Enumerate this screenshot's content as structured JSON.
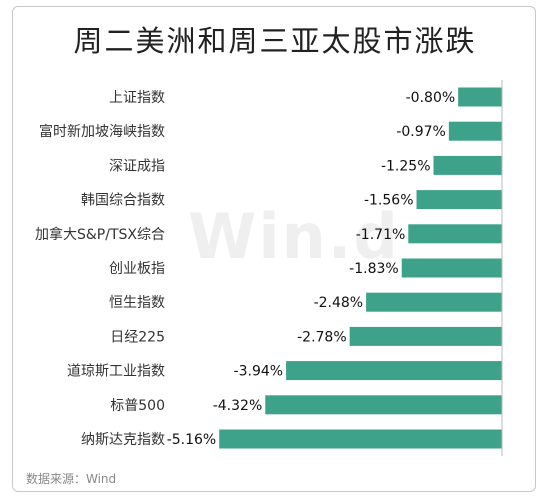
{
  "title": "周二美洲和周三亚太股市涨跌",
  "source": "数据来源：Wind",
  "watermark": "Win.d",
  "colors": {
    "bar": "#3ea18a",
    "text": "#222222",
    "axis": "#bbbbbb"
  },
  "chart_data": {
    "type": "bar",
    "orientation": "horizontal",
    "categories": [
      "上证指数",
      "富时新加坡海峡指数",
      "深证成指",
      "韩国综合指数",
      "加拿大S&P/TSX综合",
      "创业板指",
      "恒生指数",
      "日经225",
      "道琼斯工业指数",
      "标普500",
      "纳斯达克指数"
    ],
    "values": [
      -0.8,
      -0.97,
      -1.25,
      -1.56,
      -1.71,
      -1.83,
      -2.48,
      -2.78,
      -3.94,
      -4.32,
      -5.16
    ],
    "value_labels": [
      "-0.80%",
      "-0.97%",
      "-1.25%",
      "-1.56%",
      "-1.71%",
      "-1.83%",
      "-2.48%",
      "-2.78%",
      "-3.94%",
      "-4.32%",
      "-5.16%"
    ],
    "unit": "%",
    "xlim": [
      -5.2,
      0
    ],
    "grid": false,
    "legend": "none"
  }
}
